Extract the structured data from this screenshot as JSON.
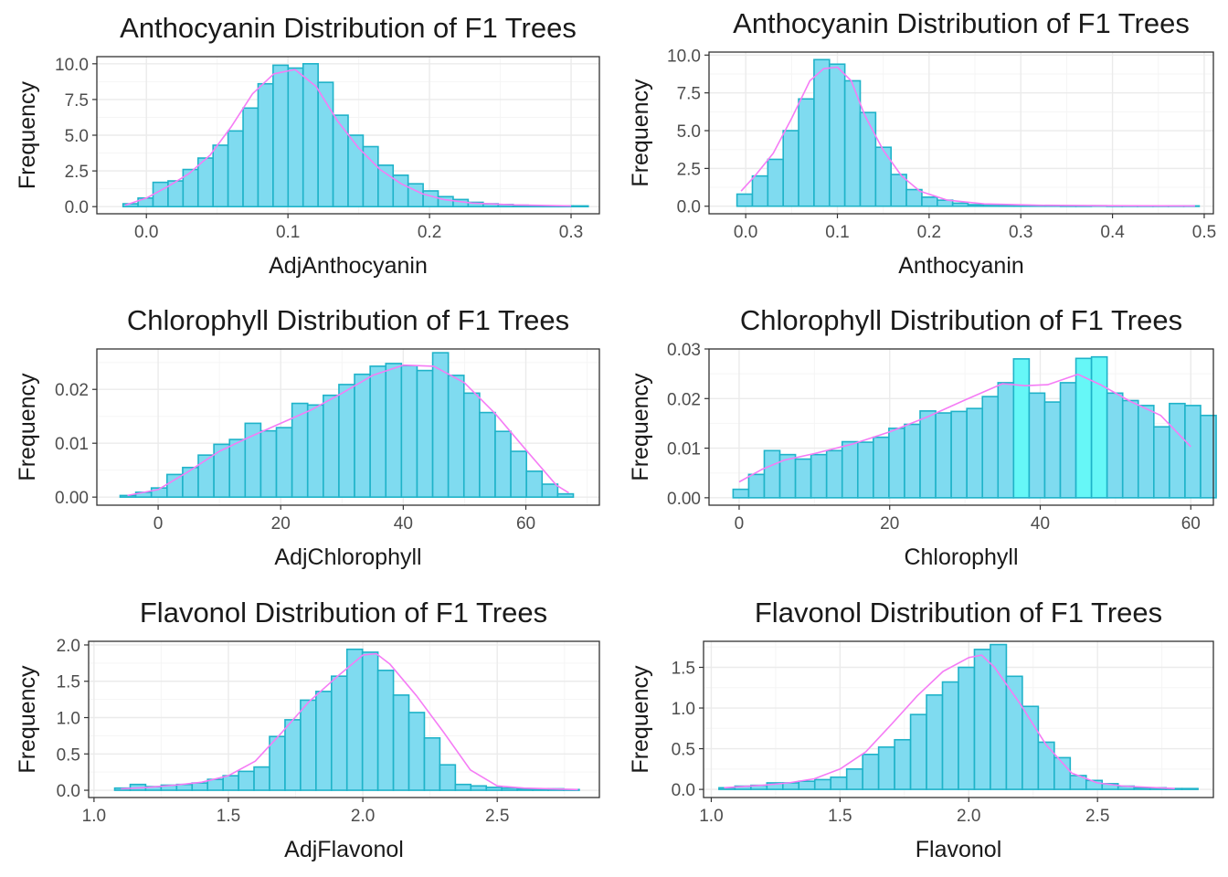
{
  "figure": {
    "colors": {
      "bar_fill": "#7fdbf0",
      "bar_stroke": "#1fb3c9",
      "bar_fill_highlight": "#66f7f7",
      "density_line": "#f57cf5",
      "grid_major": "#ebebeb",
      "grid_minor": "#f5f5f5",
      "panel_border": "#333333"
    }
  },
  "chart_data": [
    {
      "type": "bar",
      "title": "Anthocyanin Distribution of F1 Trees",
      "xlabel": "AdjAnthocyanin",
      "ylabel": "Frequency",
      "xlim": [
        -0.035,
        0.32
      ],
      "ylim": [
        -0.5,
        10.5
      ],
      "xticks": [
        0.0,
        0.1,
        0.2,
        0.3
      ],
      "xtick_labels": [
        "0.0",
        "0.1",
        "0.2",
        "0.3"
      ],
      "yticks": [
        0.0,
        2.5,
        5.0,
        7.5,
        10.0
      ],
      "ytick_labels": [
        "0.0",
        "2.5",
        "5.0",
        "7.5",
        "10.0"
      ],
      "bin_start": -0.0165,
      "bin_width": 0.0106,
      "values": [
        0.2,
        0.6,
        1.7,
        1.8,
        2.6,
        3.4,
        4.3,
        5.3,
        6.9,
        8.6,
        9.9,
        9.7,
        10.0,
        8.7,
        6.4,
        5.0,
        4.2,
        2.9,
        2.2,
        1.6,
        1.1,
        0.7,
        0.5,
        0.3,
        0.2,
        0.15,
        0.1,
        0.05,
        0.05,
        0.05,
        0.05
      ],
      "density": [
        [
          -0.015,
          0.1
        ],
        [
          0.0,
          0.6
        ],
        [
          0.015,
          1.4
        ],
        [
          0.03,
          2.3
        ],
        [
          0.045,
          3.6
        ],
        [
          0.06,
          5.6
        ],
        [
          0.075,
          7.9
        ],
        [
          0.09,
          9.3
        ],
        [
          0.105,
          9.6
        ],
        [
          0.12,
          8.4
        ],
        [
          0.135,
          6.0
        ],
        [
          0.15,
          4.1
        ],
        [
          0.165,
          2.6
        ],
        [
          0.18,
          1.6
        ],
        [
          0.195,
          0.9
        ],
        [
          0.21,
          0.5
        ],
        [
          0.23,
          0.25
        ],
        [
          0.26,
          0.12
        ],
        [
          0.3,
          0.05
        ]
      ]
    },
    {
      "type": "bar",
      "title": "Anthocyanin Distribution of F1 Trees",
      "xlabel": "Anthocyanin",
      "ylabel": "Frequency",
      "xlim": [
        -0.04,
        0.51
      ],
      "ylim": [
        -0.5,
        10.2
      ],
      "xticks": [
        0.0,
        0.1,
        0.2,
        0.3,
        0.4,
        0.5
      ],
      "xtick_labels": [
        "0.0",
        "0.1",
        "0.2",
        "0.3",
        "0.4",
        "0.5"
      ],
      "yticks": [
        0.0,
        2.5,
        5.0,
        7.5,
        10.0
      ],
      "ytick_labels": [
        "0.0",
        "2.5",
        "5.0",
        "7.5",
        "10.0"
      ],
      "bin_start": -0.0095,
      "bin_width": 0.0168,
      "values": [
        0.8,
        2.0,
        3.1,
        5.0,
        7.1,
        9.7,
        9.4,
        8.3,
        6.2,
        3.9,
        2.1,
        1.1,
        0.6,
        0.4,
        0.2,
        0.1,
        0.05,
        0.05,
        0.03,
        0.03,
        0.03,
        0.02,
        0.02,
        0.03,
        0.02,
        0.02,
        0.02,
        0.02,
        0.02,
        0.02
      ],
      "density": [
        [
          -0.005,
          1.0
        ],
        [
          0.01,
          2.0
        ],
        [
          0.03,
          3.5
        ],
        [
          0.05,
          5.8
        ],
        [
          0.07,
          8.3
        ],
        [
          0.085,
          9.1
        ],
        [
          0.1,
          9.2
        ],
        [
          0.115,
          8.3
        ],
        [
          0.13,
          6.0
        ],
        [
          0.15,
          3.7
        ],
        [
          0.17,
          2.0
        ],
        [
          0.19,
          1.0
        ],
        [
          0.22,
          0.4
        ],
        [
          0.26,
          0.15
        ],
        [
          0.32,
          0.06
        ],
        [
          0.4,
          0.03
        ],
        [
          0.49,
          0.02
        ]
      ]
    },
    {
      "type": "bar",
      "title": "Chlorophyll Distribution of F1 Trees",
      "xlabel": "AdjChlorophyll",
      "ylabel": "Frequency",
      "xlim": [
        -10,
        72
      ],
      "ylim": [
        -0.0015,
        0.0275
      ],
      "xticks": [
        0,
        20,
        40,
        60
      ],
      "xtick_labels": [
        "0",
        "20",
        "40",
        "60"
      ],
      "yticks": [
        0.0,
        0.01,
        0.02
      ],
      "ytick_labels": [
        "0.00",
        "0.01",
        "0.02"
      ],
      "bin_start": -6.2,
      "bin_width": 2.55,
      "values": [
        0.0003,
        0.0009,
        0.0017,
        0.0042,
        0.0055,
        0.0078,
        0.0098,
        0.0107,
        0.0137,
        0.0123,
        0.0129,
        0.0174,
        0.0171,
        0.0189,
        0.0209,
        0.0228,
        0.0243,
        0.0248,
        0.0244,
        0.0235,
        0.0268,
        0.0226,
        0.0193,
        0.0157,
        0.0122,
        0.0085,
        0.0048,
        0.0024,
        0.0006
      ],
      "density": [
        [
          -5,
          0.0003
        ],
        [
          0,
          0.0014
        ],
        [
          5,
          0.0048
        ],
        [
          10,
          0.0085
        ],
        [
          15,
          0.0112
        ],
        [
          20,
          0.0137
        ],
        [
          25,
          0.0162
        ],
        [
          30,
          0.0193
        ],
        [
          35,
          0.0226
        ],
        [
          40,
          0.0245
        ],
        [
          45,
          0.0243
        ],
        [
          50,
          0.0212
        ],
        [
          55,
          0.0155
        ],
        [
          60,
          0.0088
        ],
        [
          65,
          0.0022
        ],
        [
          67,
          0.0008
        ]
      ]
    },
    {
      "type": "bar",
      "title": "Chlorophyll Distribution of F1 Trees",
      "xlabel": "Chlorophyll",
      "ylabel": "Frequency",
      "xlim": [
        -4,
        63
      ],
      "ylim": [
        -0.0015,
        0.03
      ],
      "xticks": [
        0,
        20,
        40,
        60
      ],
      "xtick_labels": [
        "0",
        "20",
        "40",
        "60"
      ],
      "yticks": [
        0.0,
        0.01,
        0.02,
        0.03
      ],
      "ytick_labels": [
        "0.00",
        "0.01",
        "0.02",
        "0.03"
      ],
      "bin_start": -0.8,
      "bin_width": 2.07,
      "values": [
        0.0017,
        0.0047,
        0.0095,
        0.0087,
        0.0078,
        0.0087,
        0.0095,
        0.0113,
        0.0112,
        0.0122,
        0.014,
        0.0148,
        0.0175,
        0.0171,
        0.0174,
        0.018,
        0.0204,
        0.0232,
        0.028,
        0.0211,
        0.0193,
        0.0232,
        0.0281,
        0.0284,
        0.0211,
        0.0196,
        0.0186,
        0.0143,
        0.019,
        0.0186,
        0.0166
      ],
      "density": [
        [
          0,
          0.0032
        ],
        [
          3,
          0.0057
        ],
        [
          6,
          0.0076
        ],
        [
          10,
          0.0089
        ],
        [
          15,
          0.0108
        ],
        [
          20,
          0.0133
        ],
        [
          25,
          0.0163
        ],
        [
          30,
          0.0197
        ],
        [
          35,
          0.023
        ],
        [
          38,
          0.0226
        ],
        [
          41,
          0.0228
        ],
        [
          45,
          0.0249
        ],
        [
          48,
          0.0228
        ],
        [
          52,
          0.0194
        ],
        [
          56,
          0.0166
        ],
        [
          60,
          0.0103
        ]
      ]
    },
    {
      "type": "bar",
      "title": "Flavonol Distribution of F1 Trees",
      "xlabel": "AdjFlavonol",
      "ylabel": "Frequency",
      "xlim": [
        0.98,
        2.88
      ],
      "ylim": [
        -0.1,
        2.05
      ],
      "xticks": [
        1.0,
        1.5,
        2.0,
        2.5
      ],
      "xtick_labels": [
        "1.0",
        "1.5",
        "2.0",
        "2.5"
      ],
      "yticks": [
        0.0,
        0.5,
        1.0,
        1.5,
        2.0
      ],
      "ytick_labels": [
        "0.0",
        "0.5",
        "1.0",
        "1.5",
        "2.0"
      ],
      "bin_start": 1.077,
      "bin_width": 0.0576,
      "values": [
        0.03,
        0.08,
        0.05,
        0.07,
        0.08,
        0.1,
        0.15,
        0.2,
        0.26,
        0.32,
        0.74,
        0.97,
        1.24,
        1.36,
        1.57,
        1.94,
        1.9,
        1.65,
        1.31,
        1.07,
        0.72,
        0.35,
        0.08,
        0.06,
        0.04,
        0.03,
        0.02,
        0.02,
        0.02,
        0.01
      ],
      "density": [
        [
          1.1,
          0.02
        ],
        [
          1.2,
          0.04
        ],
        [
          1.3,
          0.07
        ],
        [
          1.4,
          0.11
        ],
        [
          1.5,
          0.2
        ],
        [
          1.6,
          0.4
        ],
        [
          1.7,
          0.8
        ],
        [
          1.8,
          1.22
        ],
        [
          1.9,
          1.55
        ],
        [
          2.0,
          1.86
        ],
        [
          2.05,
          1.88
        ],
        [
          2.1,
          1.74
        ],
        [
          2.2,
          1.3
        ],
        [
          2.3,
          0.8
        ],
        [
          2.4,
          0.28
        ],
        [
          2.5,
          0.06
        ],
        [
          2.6,
          0.03
        ],
        [
          2.8,
          0.01
        ]
      ]
    },
    {
      "type": "bar",
      "title": "Flavonol Distribution of F1 Trees",
      "xlabel": "Flavonol",
      "ylabel": "Frequency",
      "xlim": [
        0.97,
        2.95
      ],
      "ylim": [
        -0.1,
        1.82
      ],
      "xticks": [
        1.0,
        1.5,
        2.0,
        2.5
      ],
      "xtick_labels": [
        "1.0",
        "1.5",
        "2.0",
        "2.5"
      ],
      "yticks": [
        0.0,
        0.5,
        1.0,
        1.5
      ],
      "ytick_labels": [
        "0.0",
        "0.5",
        "1.0",
        "1.5"
      ],
      "bin_start": 1.03,
      "bin_width": 0.062,
      "values": [
        0.02,
        0.04,
        0.05,
        0.08,
        0.08,
        0.1,
        0.12,
        0.15,
        0.25,
        0.43,
        0.52,
        0.61,
        0.92,
        1.16,
        1.32,
        1.5,
        1.72,
        1.78,
        1.39,
        1.02,
        0.58,
        0.39,
        0.17,
        0.11,
        0.07,
        0.04,
        0.02,
        0.02,
        0.01,
        0.01
      ],
      "density": [
        [
          1.05,
          0.02
        ],
        [
          1.2,
          0.05
        ],
        [
          1.3,
          0.08
        ],
        [
          1.4,
          0.13
        ],
        [
          1.5,
          0.25
        ],
        [
          1.6,
          0.46
        ],
        [
          1.7,
          0.8
        ],
        [
          1.8,
          1.15
        ],
        [
          1.9,
          1.45
        ],
        [
          2.0,
          1.62
        ],
        [
          2.05,
          1.65
        ],
        [
          2.1,
          1.5
        ],
        [
          2.2,
          1.05
        ],
        [
          2.3,
          0.55
        ],
        [
          2.4,
          0.2
        ],
        [
          2.5,
          0.08
        ],
        [
          2.6,
          0.04
        ],
        [
          2.8,
          0.01
        ]
      ]
    }
  ]
}
